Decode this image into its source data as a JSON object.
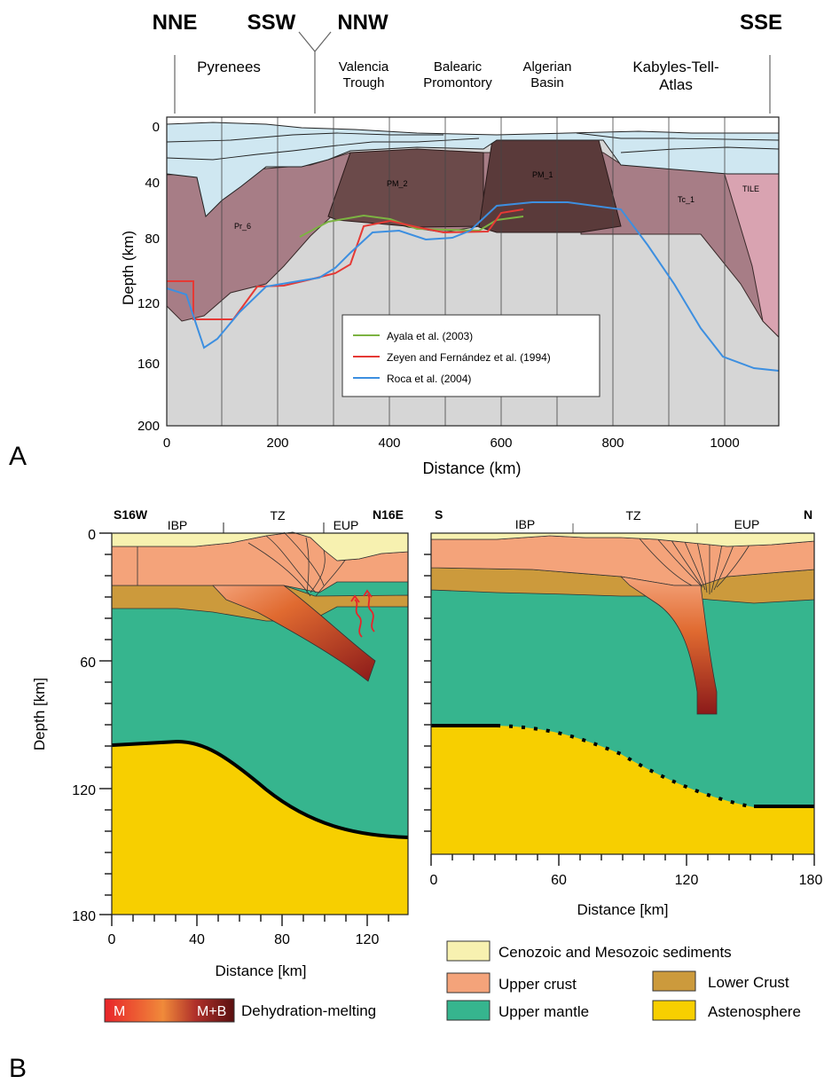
{
  "panelA": {
    "panel_label": "A",
    "orientations": [
      "NNE",
      "SSW",
      "NNW",
      "SSE"
    ],
    "regions": [
      {
        "lines": [
          "Pyrenees"
        ]
      },
      {
        "lines": [
          "Valencia",
          "Trough"
        ]
      },
      {
        "lines": [
          "Balearic",
          "Promontory"
        ]
      },
      {
        "lines": [
          "Algerian",
          "Basin"
        ]
      },
      {
        "lines": [
          "Kabyles-Tell-",
          "Atlas"
        ]
      }
    ],
    "body_labels": [
      "Pr_6",
      "PM_2",
      "PM_1",
      "Tc_1",
      "TILE"
    ],
    "xlabel": "Distance (km)",
    "ylabel": "Depth (km)",
    "xticks": [
      "0",
      "200",
      "400",
      "600",
      "800",
      "1000"
    ],
    "yticks": [
      "0",
      "40",
      "80",
      "120",
      "160",
      "200"
    ],
    "legend": [
      {
        "label": "Ayala et al. (2003)",
        "color": "#7cb342"
      },
      {
        "label": "Zeyen and Fernández et al. (1994)",
        "color": "#e53935"
      },
      {
        "label": "Roca et al. (2004)",
        "color": "#3d8fe0"
      }
    ],
    "colors": {
      "sediment": "#cfe7f1",
      "lithosphere": "#a77d86",
      "dark_body": "#6b4a4a",
      "tile": "#d9a3b1",
      "asthenosphere": "#d6d6d6"
    }
  },
  "panelB": {
    "panel_label": "B",
    "left": {
      "ends": [
        "S16W",
        "N16E"
      ],
      "zones": [
        "IBP",
        "TZ",
        "EUP"
      ],
      "xlabel": "Distance  [km]",
      "ylabel": "Depth [km]",
      "xticks": [
        "0",
        "40",
        "80",
        "120"
      ],
      "yticks": [
        "0",
        "60",
        "120",
        "180"
      ]
    },
    "right": {
      "ends": [
        "S",
        "N"
      ],
      "zones": [
        "IBP",
        "TZ",
        "EUP"
      ],
      "xlabel": "Distance [km]",
      "xticks": [
        "0",
        "60",
        "120",
        "180"
      ]
    },
    "colorbar": {
      "start": "M",
      "end": "M+B",
      "label": "Dehydration-melting"
    },
    "legend": [
      {
        "label": "Cenozoic and Mesozoic sediments",
        "color": "#f7f1b0"
      },
      {
        "label": "Upper crust",
        "color": "#f4a37a"
      },
      {
        "label": "Lower Crust",
        "color": "#cc9a3c"
      },
      {
        "label": "Upper mantle",
        "color": "#36b58e"
      },
      {
        "label": "Astenosphere",
        "color": "#f7cf00"
      }
    ]
  }
}
